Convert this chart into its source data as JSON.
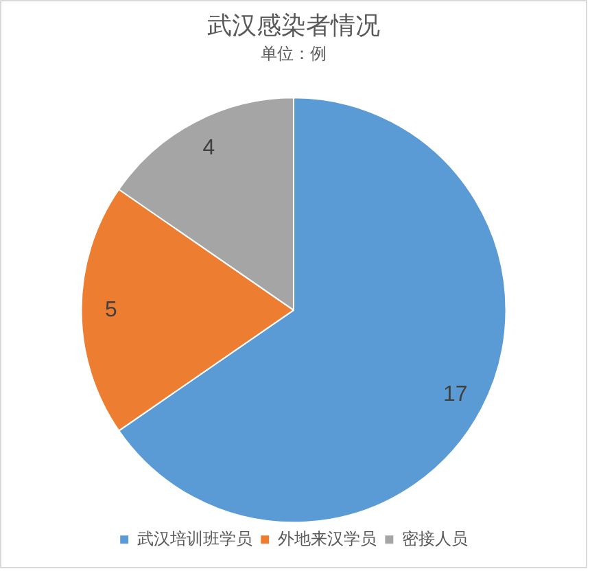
{
  "chart_data": {
    "type": "pie",
    "title": "武汉感染者情况",
    "subtitle": "单位：例",
    "categories": [
      "武汉培训班学员",
      "外地来汉学员",
      "密接人员"
    ],
    "values": [
      17,
      5,
      4
    ],
    "colors": [
      "#5b9bd5",
      "#ed7d31",
      "#a5a5a5"
    ],
    "data_labels": true,
    "legend": "bottom"
  }
}
